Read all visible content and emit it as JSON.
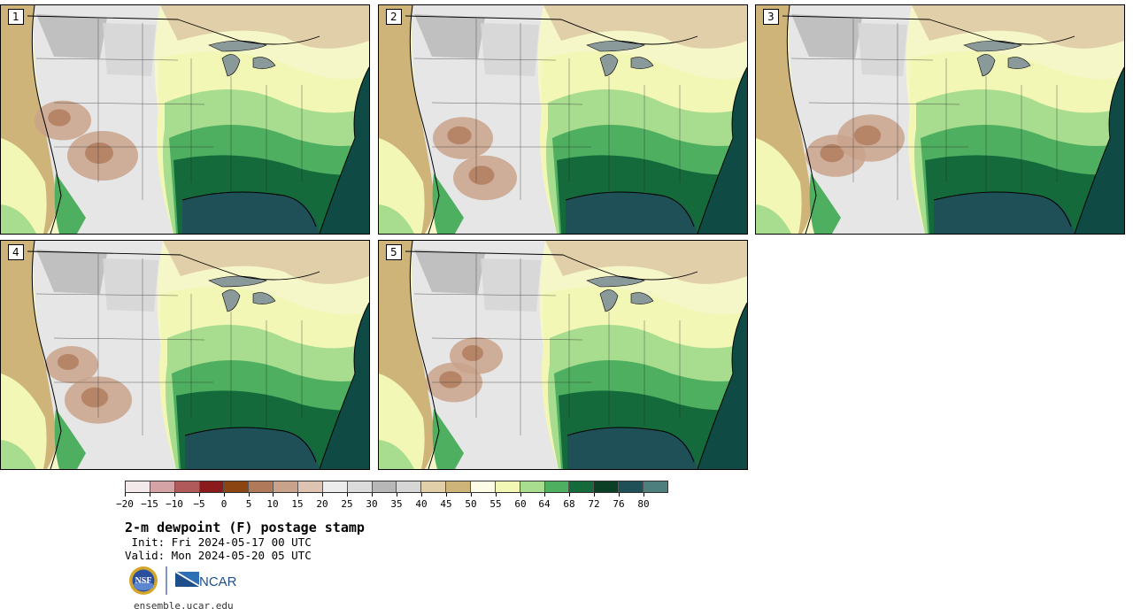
{
  "panels": [
    {
      "label": "1"
    },
    {
      "label": "2"
    },
    {
      "label": "3"
    },
    {
      "label": "4"
    },
    {
      "label": "5"
    }
  ],
  "colorbar": {
    "colors": [
      "#f3e8ea",
      "#d3a3a5",
      "#b05a5b",
      "#8b1a1d",
      "#8b4513",
      "#b07a5a",
      "#c9a28b",
      "#dfc3b2",
      "#ececec",
      "#dcdcdc",
      "#b7b7b7",
      "#d6d6d6",
      "#e0cfa8",
      "#cfb47a",
      "#fbfbe6",
      "#f2f7b6",
      "#a8dc8f",
      "#4daf5f",
      "#146a3a",
      "#0b3f26",
      "#1f4f57",
      "#4e7f7f"
    ],
    "tick_labels": [
      "−20",
      "−15",
      "−10",
      "−5",
      "0",
      "5",
      "10",
      "15",
      "20",
      "25",
      "30",
      "35",
      "40",
      "45",
      "50",
      "55",
      "60",
      "64",
      "68",
      "72",
      "76",
      "80"
    ]
  },
  "title": "2-m dewpoint (F) postage stamp",
  "init": " Init: Fri 2024-05-17 00 UTC",
  "valid": "Valid: Mon 2024-05-20 05 UTC",
  "logos": {
    "nsf": "NSF",
    "ncar": "NCAR"
  },
  "website": "ensemble.ucar.edu"
}
